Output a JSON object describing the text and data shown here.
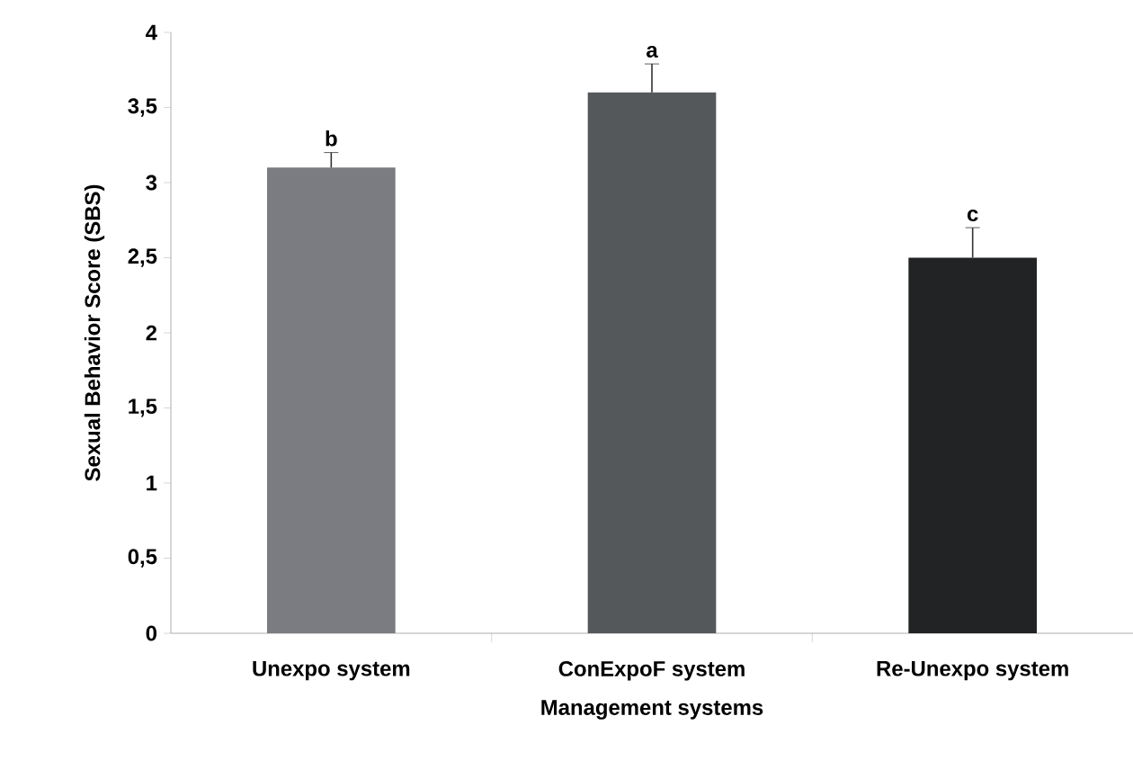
{
  "chart_data": {
    "type": "bar",
    "xlabel": "Management systems",
    "ylabel": "Sexual Behavior Score (SBS)",
    "categories": [
      "Unexpo system",
      "ConExpoF system",
      "Re-Unexpo system"
    ],
    "values": [
      3.1,
      3.6,
      2.5
    ],
    "colors": [
      "#7b7c81",
      "#55585b",
      "#222324"
    ],
    "errors": [
      [
        3.1,
        3.2
      ],
      [
        3.6,
        3.79
      ],
      [
        2.5,
        2.7
      ]
    ],
    "ylim": [
      0,
      4
    ],
    "yticks": [
      0,
      {
        "value": 0.5,
        "label": "0,5"
      },
      1,
      {
        "value": 1.5,
        "label": "1,5"
      },
      2,
      {
        "value": 2.5,
        "label": "2,5"
      },
      3,
      {
        "value": 3.5,
        "label": "3,5"
      },
      4
    ],
    "annotations": [
      "b",
      "a",
      "c"
    ],
    "grid": false
  }
}
